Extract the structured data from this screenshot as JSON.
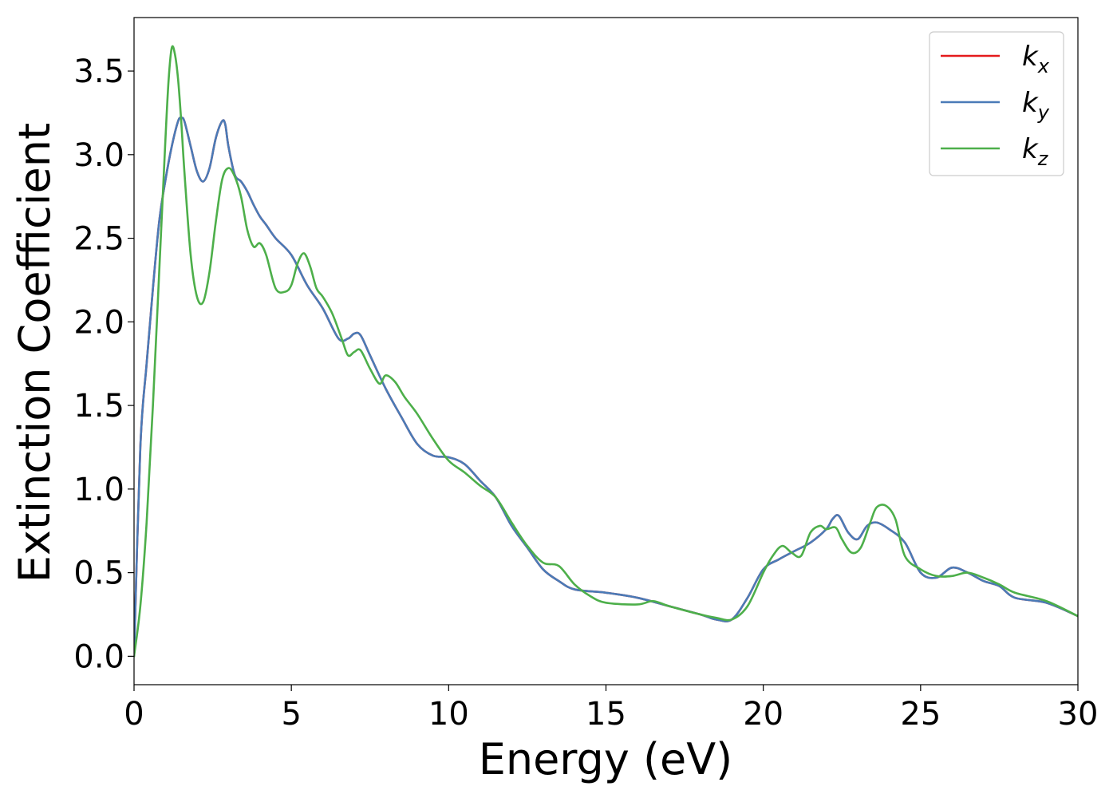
{
  "chart_data": {
    "type": "line",
    "xlabel": "Energy (eV)",
    "ylabel": "Extinction Coefficient",
    "xlim": [
      0,
      30
    ],
    "ylim": [
      -0.17,
      3.82
    ],
    "xticks": [
      0,
      5,
      10,
      15,
      20,
      25,
      30
    ],
    "yticks": [
      0.0,
      0.5,
      1.0,
      1.5,
      2.0,
      2.5,
      3.0,
      3.5
    ],
    "grid": false,
    "legend_position": "top-right",
    "series": [
      {
        "name": "k",
        "subscript": "x",
        "color": "#e41a1c",
        "x": [
          0,
          0.2,
          0.4,
          0.6,
          0.8,
          1.0,
          1.2,
          1.4,
          1.5,
          1.6,
          1.8,
          2.0,
          2.2,
          2.4,
          2.6,
          2.8,
          2.9,
          3.0,
          3.2,
          3.4,
          3.6,
          3.8,
          4.0,
          4.2,
          4.5,
          5.0,
          5.5,
          6.0,
          6.5,
          6.8,
          7.0,
          7.2,
          7.5,
          8.0,
          8.5,
          9.0,
          9.5,
          10.0,
          10.5,
          11.0,
          11.5,
          12.0,
          12.5,
          13.0,
          13.5,
          14.0,
          15.0,
          16.0,
          17.0,
          18.0,
          18.5,
          19.0,
          19.5,
          20.0,
          20.5,
          21.0,
          21.5,
          22.0,
          22.2,
          22.4,
          22.7,
          23.0,
          23.3,
          23.6,
          24.0,
          24.5,
          25.0,
          25.5,
          26.0,
          26.5,
          27.0,
          27.5,
          28.0,
          29.0,
          30.0
        ],
        "values": [
          0.0,
          1.25,
          1.75,
          2.2,
          2.6,
          2.85,
          3.05,
          3.2,
          3.22,
          3.2,
          3.05,
          2.9,
          2.84,
          2.92,
          3.1,
          3.2,
          3.18,
          3.05,
          2.88,
          2.84,
          2.78,
          2.7,
          2.63,
          2.58,
          2.5,
          2.4,
          2.22,
          2.08,
          1.9,
          1.9,
          1.93,
          1.92,
          1.8,
          1.6,
          1.43,
          1.27,
          1.2,
          1.19,
          1.15,
          1.05,
          0.95,
          0.78,
          0.65,
          0.52,
          0.45,
          0.4,
          0.38,
          0.35,
          0.3,
          0.25,
          0.22,
          0.22,
          0.35,
          0.52,
          0.58,
          0.63,
          0.68,
          0.76,
          0.82,
          0.84,
          0.74,
          0.7,
          0.78,
          0.8,
          0.76,
          0.68,
          0.5,
          0.47,
          0.53,
          0.5,
          0.45,
          0.42,
          0.35,
          0.32,
          0.24
        ]
      },
      {
        "name": "k",
        "subscript": "y",
        "color": "#4a7bb7",
        "x": [
          0,
          0.2,
          0.4,
          0.6,
          0.8,
          1.0,
          1.2,
          1.4,
          1.5,
          1.6,
          1.8,
          2.0,
          2.2,
          2.4,
          2.6,
          2.8,
          2.9,
          3.0,
          3.2,
          3.4,
          3.6,
          3.8,
          4.0,
          4.2,
          4.5,
          5.0,
          5.5,
          6.0,
          6.5,
          6.8,
          7.0,
          7.2,
          7.5,
          8.0,
          8.5,
          9.0,
          9.5,
          10.0,
          10.5,
          11.0,
          11.5,
          12.0,
          12.5,
          13.0,
          13.5,
          14.0,
          15.0,
          16.0,
          17.0,
          18.0,
          18.5,
          19.0,
          19.5,
          20.0,
          20.5,
          21.0,
          21.5,
          22.0,
          22.2,
          22.4,
          22.7,
          23.0,
          23.3,
          23.6,
          24.0,
          24.5,
          25.0,
          25.5,
          26.0,
          26.5,
          27.0,
          27.5,
          28.0,
          29.0,
          30.0
        ],
        "values": [
          0.0,
          1.25,
          1.75,
          2.2,
          2.6,
          2.85,
          3.05,
          3.2,
          3.22,
          3.2,
          3.05,
          2.9,
          2.84,
          2.92,
          3.1,
          3.2,
          3.18,
          3.05,
          2.88,
          2.84,
          2.78,
          2.7,
          2.63,
          2.58,
          2.5,
          2.4,
          2.22,
          2.08,
          1.9,
          1.9,
          1.93,
          1.92,
          1.8,
          1.6,
          1.43,
          1.27,
          1.2,
          1.19,
          1.15,
          1.05,
          0.95,
          0.78,
          0.65,
          0.52,
          0.45,
          0.4,
          0.38,
          0.35,
          0.3,
          0.25,
          0.22,
          0.22,
          0.35,
          0.52,
          0.58,
          0.63,
          0.68,
          0.76,
          0.82,
          0.84,
          0.74,
          0.7,
          0.78,
          0.8,
          0.76,
          0.68,
          0.5,
          0.47,
          0.53,
          0.5,
          0.45,
          0.42,
          0.35,
          0.32,
          0.24
        ]
      },
      {
        "name": "k",
        "subscript": "z",
        "color": "#4daf4a",
        "x": [
          0,
          0.2,
          0.4,
          0.6,
          0.8,
          1.0,
          1.1,
          1.2,
          1.3,
          1.4,
          1.5,
          1.6,
          1.8,
          2.0,
          2.2,
          2.4,
          2.6,
          2.8,
          3.0,
          3.2,
          3.4,
          3.6,
          3.8,
          4.0,
          4.2,
          4.5,
          4.8,
          5.0,
          5.2,
          5.4,
          5.6,
          5.8,
          6.0,
          6.3,
          6.6,
          6.8,
          7.0,
          7.2,
          7.5,
          7.8,
          8.0,
          8.3,
          8.6,
          9.0,
          9.5,
          10.0,
          10.5,
          11.0,
          11.5,
          12.0,
          12.5,
          13.0,
          13.5,
          14.0,
          14.5,
          15.0,
          16.0,
          16.5,
          17.0,
          18.0,
          18.5,
          19.0,
          19.5,
          20.0,
          20.3,
          20.6,
          20.9,
          21.2,
          21.5,
          21.8,
          22.0,
          22.3,
          22.5,
          22.8,
          23.1,
          23.4,
          23.6,
          23.9,
          24.2,
          24.5,
          25.0,
          25.5,
          26.0,
          26.5,
          27.0,
          27.5,
          28.0,
          29.0,
          30.0
        ],
        "values": [
          0.0,
          0.3,
          0.8,
          1.5,
          2.3,
          3.1,
          3.45,
          3.64,
          3.6,
          3.45,
          3.2,
          2.9,
          2.4,
          2.15,
          2.12,
          2.3,
          2.6,
          2.85,
          2.92,
          2.87,
          2.75,
          2.55,
          2.45,
          2.47,
          2.4,
          2.2,
          2.18,
          2.22,
          2.35,
          2.41,
          2.33,
          2.2,
          2.15,
          2.05,
          1.9,
          1.8,
          1.82,
          1.83,
          1.72,
          1.63,
          1.68,
          1.64,
          1.55,
          1.45,
          1.3,
          1.17,
          1.1,
          1.02,
          0.95,
          0.8,
          0.66,
          0.56,
          0.54,
          0.43,
          0.36,
          0.32,
          0.31,
          0.33,
          0.3,
          0.25,
          0.23,
          0.22,
          0.3,
          0.5,
          0.6,
          0.66,
          0.62,
          0.6,
          0.74,
          0.78,
          0.76,
          0.77,
          0.7,
          0.62,
          0.65,
          0.8,
          0.89,
          0.9,
          0.82,
          0.6,
          0.52,
          0.48,
          0.48,
          0.5,
          0.47,
          0.43,
          0.38,
          0.33,
          0.24
        ]
      }
    ]
  }
}
